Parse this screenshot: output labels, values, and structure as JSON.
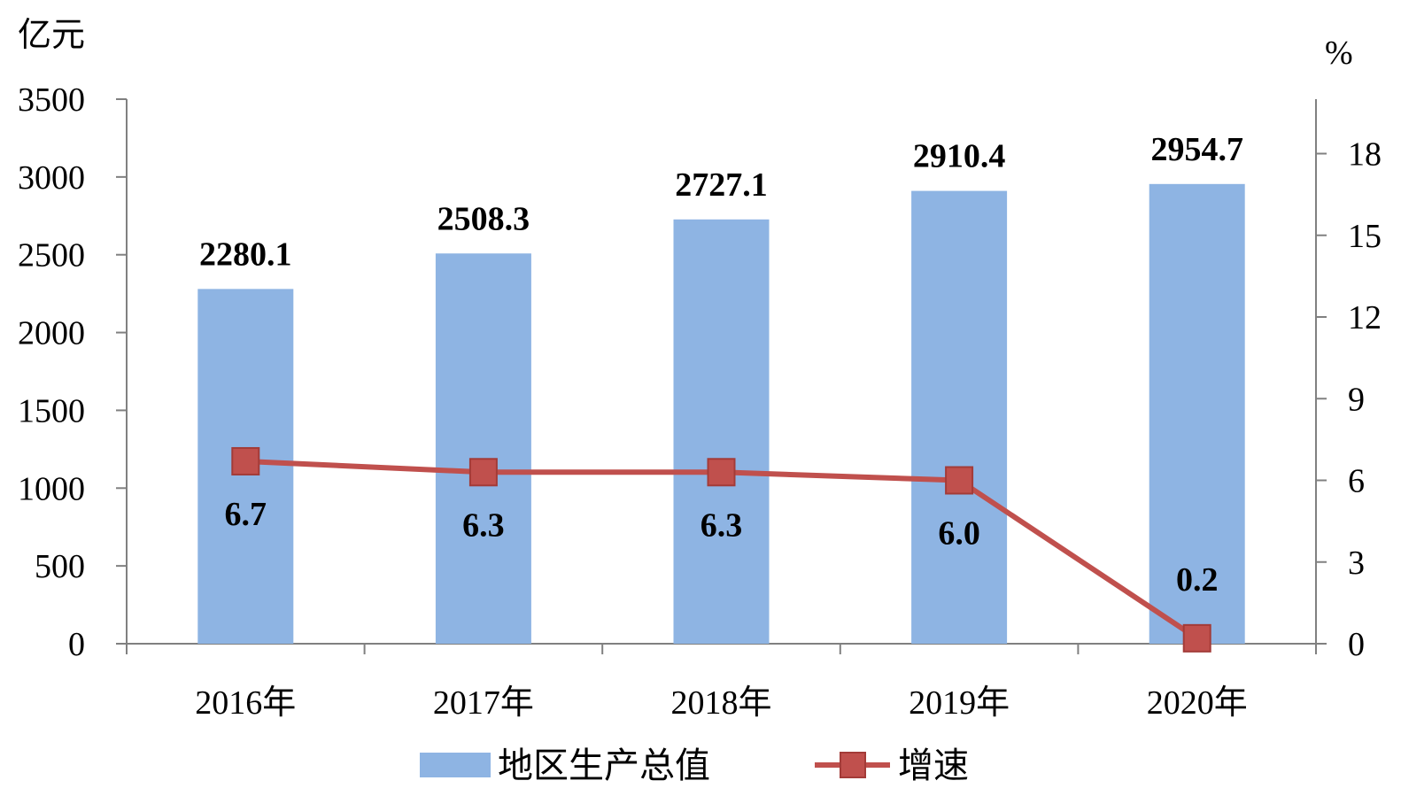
{
  "chart_data": {
    "type": "bar",
    "categories": [
      "2016年",
      "2017年",
      "2018年",
      "2019年",
      "2020年"
    ],
    "series": [
      {
        "name": "地区生产总值",
        "type": "bar",
        "axis": "left",
        "values": [
          2280.1,
          2508.3,
          2727.1,
          2910.4,
          2954.7
        ],
        "labels": [
          "2280.1",
          "2508.3",
          "2727.1",
          "2910.4",
          "2954.7"
        ],
        "color": "#8EB4E3"
      },
      {
        "name": "增速",
        "type": "line",
        "axis": "right",
        "values": [
          6.7,
          6.3,
          6.3,
          6.0,
          0.2
        ],
        "labels": [
          "6.7",
          "6.3",
          "6.3",
          "6.0",
          "0.2"
        ],
        "color": "#C0504D"
      }
    ],
    "y_left": {
      "unit": "亿元",
      "lim": [
        0,
        3500
      ],
      "ticks": [
        "0",
        "500",
        "1000",
        "1500",
        "2000",
        "2500",
        "3000",
        "3500"
      ]
    },
    "y_right": {
      "unit": "%",
      "lim": [
        0,
        20
      ],
      "ticks": [
        "0",
        "3",
        "6",
        "9",
        "12",
        "15",
        "18"
      ]
    },
    "grid": false,
    "legend": "bottom"
  }
}
